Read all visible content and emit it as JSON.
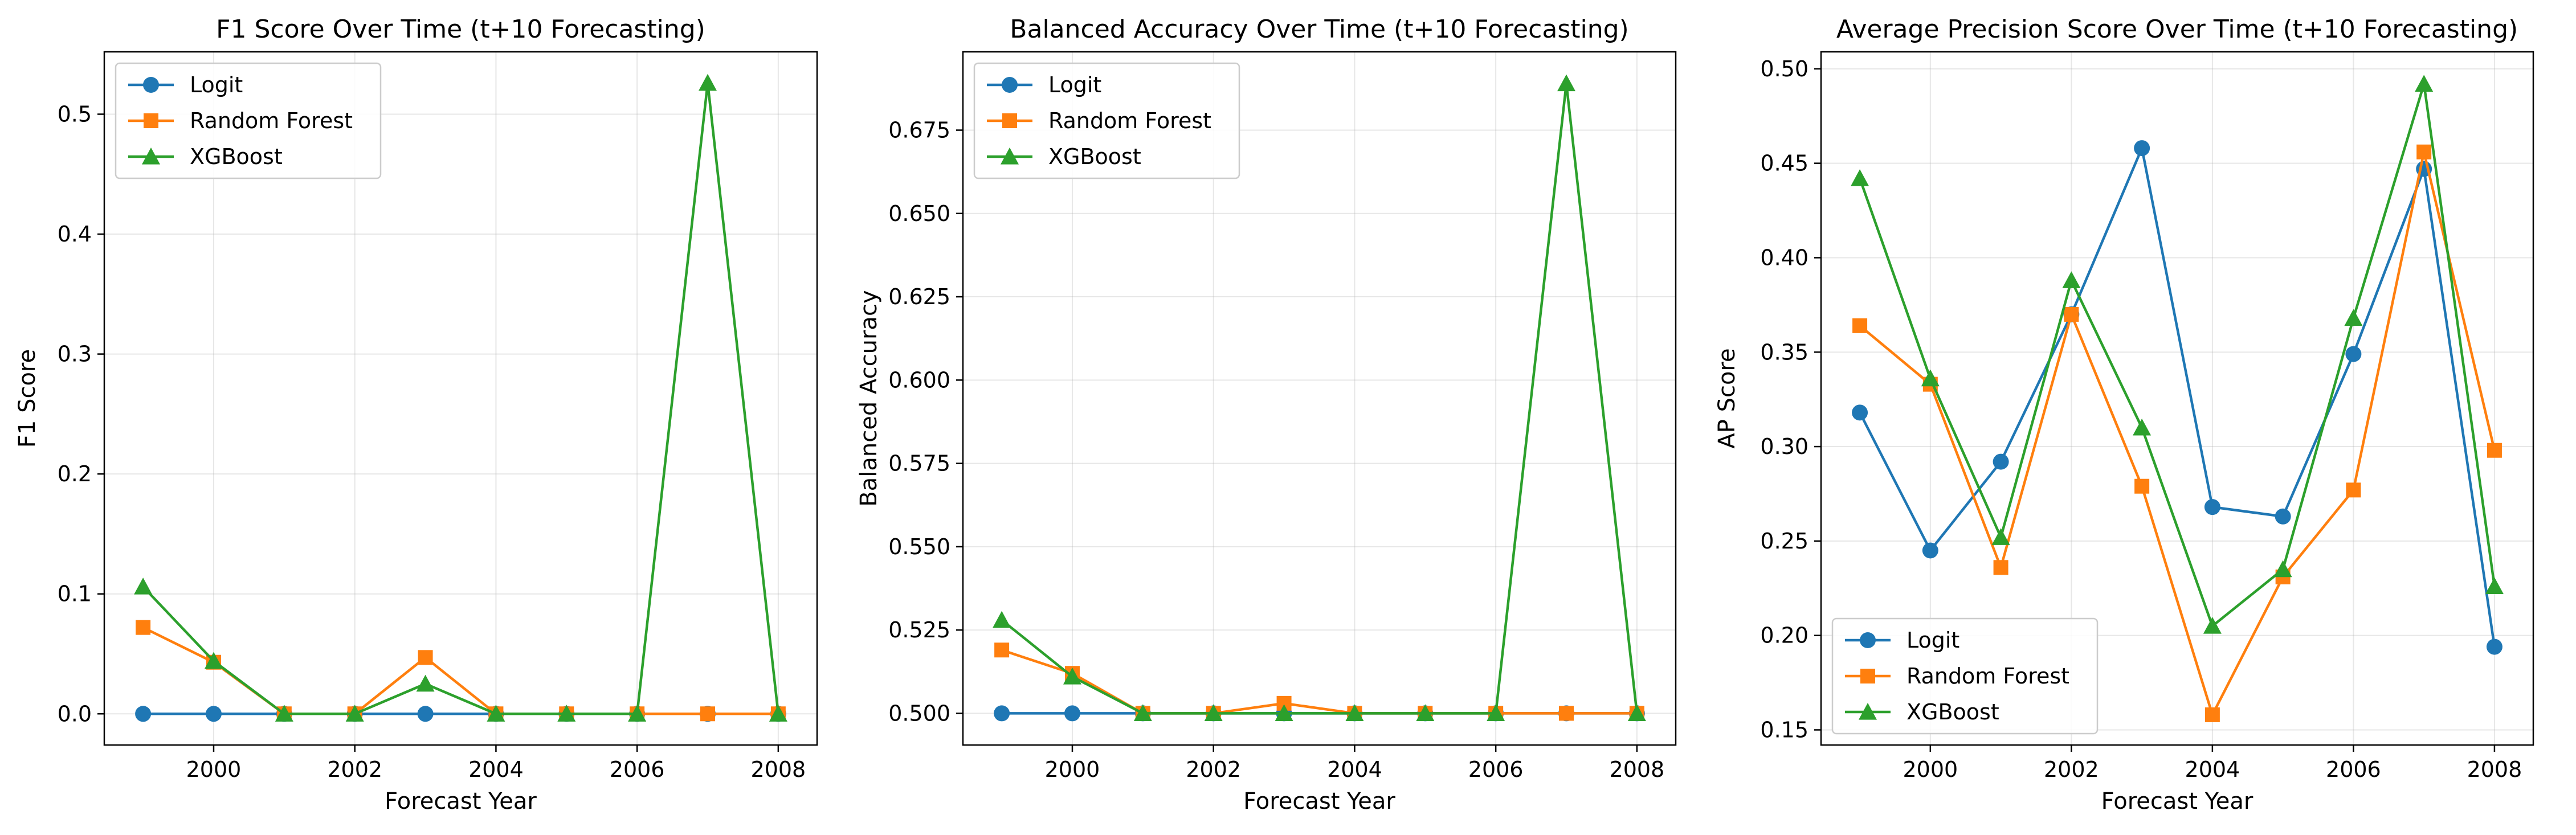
{
  "colors": {
    "Logit": "#1f77b4",
    "Random Forest": "#ff7f0e",
    "XGBoost": "#2ca02c"
  },
  "chart_data": [
    {
      "type": "line",
      "title": "F1 Score Over Time (t+10 Forecasting)",
      "xlabel": "Forecast Year",
      "ylabel": "F1 Score",
      "x": [
        1999,
        2000,
        2001,
        2002,
        2003,
        2004,
        2005,
        2006,
        2007,
        2008
      ],
      "xlim": [
        1998.45,
        2008.55
      ],
      "ylim": [
        -0.026,
        0.552
      ],
      "xticks": [
        2000,
        2002,
        2004,
        2006,
        2008
      ],
      "yticks": [
        0.0,
        0.1,
        0.2,
        0.3,
        0.4,
        0.5
      ],
      "ytick_labels": [
        "0.0",
        "0.1",
        "0.2",
        "0.3",
        "0.4",
        "0.5"
      ],
      "grid": true,
      "legend_position": "top-left",
      "series": [
        {
          "name": "Logit",
          "marker": "circle",
          "values": [
            0.0,
            0.0,
            0.0,
            0.0,
            0.0,
            0.0,
            0.0,
            0.0,
            0.0,
            0.0
          ]
        },
        {
          "name": "Random Forest",
          "marker": "square",
          "values": [
            0.072,
            0.043,
            0.0,
            0.0,
            0.047,
            0.0,
            0.0,
            0.0,
            0.0,
            0.0
          ]
        },
        {
          "name": "XGBoost",
          "marker": "triangle",
          "values": [
            0.106,
            0.044,
            0.0,
            0.0,
            0.025,
            0.0,
            0.0,
            0.0,
            0.526,
            0.0
          ]
        }
      ]
    },
    {
      "type": "line",
      "title": "Balanced Accuracy Over Time (t+10 Forecasting)",
      "xlabel": "Forecast Year",
      "ylabel": "Balanced Accuracy",
      "x": [
        1999,
        2000,
        2001,
        2002,
        2003,
        2004,
        2005,
        2006,
        2007,
        2008
      ],
      "xlim": [
        1998.45,
        2008.55
      ],
      "ylim": [
        0.4905,
        0.6985
      ],
      "xticks": [
        2000,
        2002,
        2004,
        2006,
        2008
      ],
      "yticks": [
        0.5,
        0.525,
        0.55,
        0.575,
        0.6,
        0.625,
        0.65,
        0.675
      ],
      "ytick_labels": [
        "0.500",
        "0.525",
        "0.550",
        "0.575",
        "0.600",
        "0.625",
        "0.650",
        "0.675"
      ],
      "grid": true,
      "legend_position": "top-left",
      "series": [
        {
          "name": "Logit",
          "marker": "circle",
          "values": [
            0.5,
            0.5,
            0.5,
            0.5,
            0.5,
            0.5,
            0.5,
            0.5,
            0.5,
            0.5
          ]
        },
        {
          "name": "Random Forest",
          "marker": "square",
          "values": [
            0.519,
            0.512,
            0.5,
            0.5,
            0.503,
            0.5,
            0.5,
            0.5,
            0.5,
            0.5
          ]
        },
        {
          "name": "XGBoost",
          "marker": "triangle",
          "values": [
            0.528,
            0.511,
            0.5,
            0.5,
            0.5,
            0.5,
            0.5,
            0.5,
            0.689,
            0.5
          ]
        }
      ]
    },
    {
      "type": "line",
      "title": "Average Precision Score Over Time (t+10 Forecasting)",
      "xlabel": "Forecast Year",
      "ylabel": "AP Score",
      "x": [
        1999,
        2000,
        2001,
        2002,
        2003,
        2004,
        2005,
        2006,
        2007,
        2008
      ],
      "xlim": [
        1998.45,
        2008.55
      ],
      "ylim": [
        0.142,
        0.509
      ],
      "xticks": [
        2000,
        2002,
        2004,
        2006,
        2008
      ],
      "yticks": [
        0.15,
        0.2,
        0.25,
        0.3,
        0.35,
        0.4,
        0.45,
        0.5
      ],
      "ytick_labels": [
        "0.15",
        "0.20",
        "0.25",
        "0.30",
        "0.35",
        "0.40",
        "0.45",
        "0.50"
      ],
      "grid": true,
      "legend_position": "bottom-left",
      "series": [
        {
          "name": "Logit",
          "marker": "circle",
          "values": [
            0.318,
            0.245,
            0.292,
            0.37,
            0.458,
            0.268,
            0.263,
            0.349,
            0.447,
            0.194
          ]
        },
        {
          "name": "Random Forest",
          "marker": "square",
          "values": [
            0.364,
            0.333,
            0.236,
            0.37,
            0.279,
            0.158,
            0.231,
            0.277,
            0.456,
            0.298
          ]
        },
        {
          "name": "XGBoost",
          "marker": "triangle",
          "values": [
            0.442,
            0.336,
            0.252,
            0.388,
            0.31,
            0.205,
            0.235,
            0.368,
            0.492,
            0.226
          ]
        }
      ]
    }
  ]
}
